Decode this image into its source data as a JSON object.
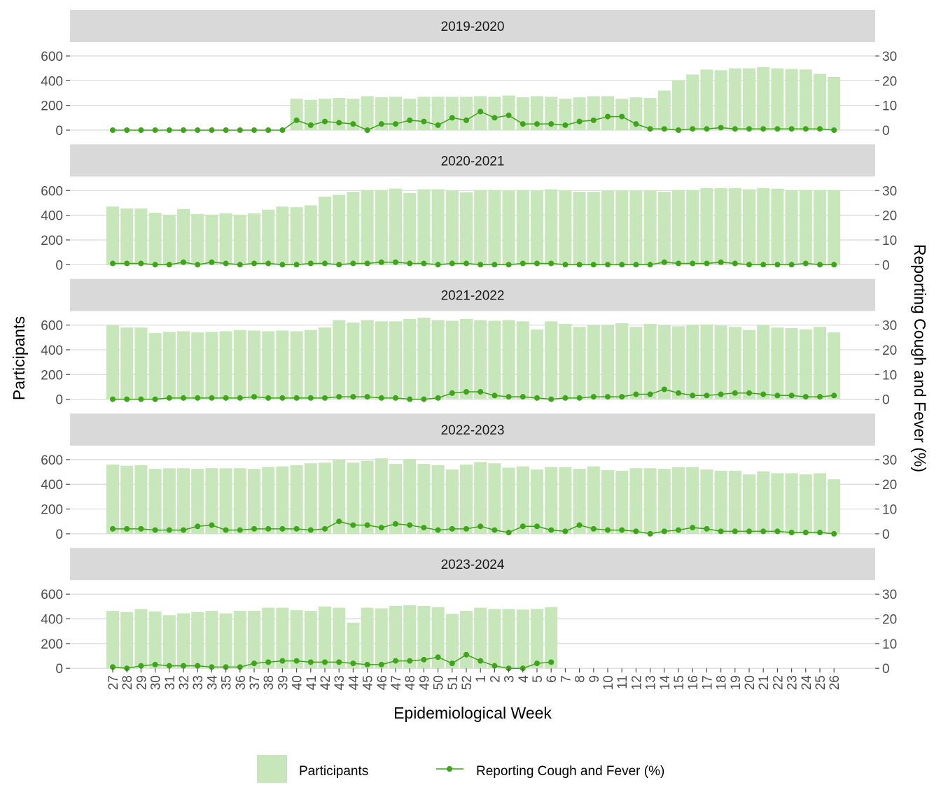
{
  "chart_data": {
    "type": "bar+line",
    "xlabel": "Epidemiological Week",
    "ylabel_left": "Participants",
    "ylabel_right": "Reporting Cough and Fever (%)",
    "ylim_left": [
      0,
      600
    ],
    "ylim_right": [
      0,
      30
    ],
    "yticks_left": [
      "0",
      "200",
      "400",
      "600"
    ],
    "yticks_right": [
      "0",
      "10",
      "20",
      "30"
    ],
    "grid": true,
    "legend_position": "bottom",
    "colors": {
      "bar": "#c7e6b9",
      "line": "#3fa31c",
      "strip": "#d9d9d9",
      "grid": "#d9d9d9"
    },
    "weeks": [
      "27",
      "28",
      "29",
      "30",
      "31",
      "32",
      "33",
      "34",
      "35",
      "36",
      "37",
      "38",
      "39",
      "40",
      "41",
      "42",
      "43",
      "44",
      "45",
      "46",
      "47",
      "48",
      "49",
      "50",
      "51",
      "52",
      "1",
      "2",
      "3",
      "4",
      "5",
      "6",
      "7",
      "8",
      "9",
      "10",
      "11",
      "12",
      "13",
      "14",
      "15",
      "16",
      "17",
      "18",
      "19",
      "20",
      "21",
      "22",
      "23",
      "24",
      "25",
      "26"
    ],
    "legend": {
      "bar_label": "Participants",
      "line_label": "Reporting Cough and Fever (%)"
    },
    "panels": [
      {
        "season": "2019-2020",
        "participants": [
          null,
          null,
          null,
          null,
          null,
          null,
          null,
          null,
          null,
          null,
          null,
          null,
          null,
          255,
          245,
          255,
          260,
          255,
          275,
          265,
          270,
          255,
          270,
          270,
          270,
          270,
          275,
          270,
          280,
          265,
          275,
          270,
          255,
          265,
          275,
          275,
          255,
          265,
          260,
          320,
          405,
          450,
          490,
          485,
          500,
          500,
          510,
          500,
          495,
          490,
          455,
          430
        ],
        "cough_fever_pct": [
          0,
          0,
          0,
          0,
          0,
          0,
          0,
          0,
          0,
          0,
          0,
          0,
          0,
          4,
          2,
          3.5,
          3,
          2.5,
          0,
          2.5,
          2.5,
          4,
          3.5,
          2,
          5,
          4,
          7.5,
          5,
          6,
          2.5,
          2.5,
          2.5,
          2,
          3.5,
          4,
          5.5,
          5.5,
          2.5,
          0.5,
          0.5,
          0,
          0.5,
          0.5,
          1,
          0.5,
          0.5,
          0.5,
          0.5,
          0.5,
          0.5,
          0.5,
          0
        ]
      },
      {
        "season": "2020-2021",
        "participants": [
          470,
          455,
          455,
          420,
          405,
          450,
          410,
          405,
          415,
          405,
          415,
          445,
          470,
          465,
          480,
          550,
          565,
          590,
          605,
          605,
          615,
          580,
          610,
          610,
          600,
          585,
          605,
          605,
          600,
          605,
          600,
          610,
          600,
          590,
          590,
          600,
          600,
          600,
          600,
          590,
          605,
          605,
          620,
          620,
          620,
          610,
          620,
          615,
          605,
          605,
          605,
          605
        ],
        "cough_fever_pct": [
          0.5,
          0.5,
          0.5,
          0,
          0,
          1,
          0,
          1,
          0.5,
          0,
          0.5,
          0.5,
          0,
          0,
          0.5,
          0.5,
          0,
          0.5,
          0.5,
          1,
          1,
          0.5,
          0.5,
          0,
          0.5,
          0.5,
          0,
          0,
          0,
          0.5,
          0.5,
          0.5,
          0,
          0,
          0,
          0,
          0,
          0,
          0,
          1,
          0.5,
          0.5,
          0.5,
          1,
          0.5,
          0,
          0,
          0,
          0,
          0.5,
          0,
          0
        ]
      },
      {
        "season": "2021-2022",
        "participants": [
          600,
          580,
          580,
          535,
          545,
          550,
          540,
          545,
          550,
          560,
          555,
          550,
          555,
          550,
          560,
          580,
          640,
          620,
          640,
          630,
          630,
          650,
          660,
          640,
          635,
          650,
          640,
          635,
          640,
          630,
          565,
          630,
          610,
          585,
          600,
          600,
          615,
          585,
          610,
          600,
          590,
          600,
          605,
          595,
          585,
          560,
          600,
          580,
          575,
          565,
          585,
          540
        ],
        "cough_fever_pct": [
          0,
          0,
          0,
          0,
          0.5,
          0.5,
          0.5,
          0.5,
          0.5,
          0.5,
          1,
          0.5,
          0.5,
          0.5,
          0.5,
          0.5,
          1,
          1,
          1,
          0.5,
          0.5,
          0,
          0,
          0.5,
          2.5,
          3,
          3,
          1.5,
          1,
          1,
          0.5,
          0,
          0.5,
          0.5,
          1,
          1,
          1,
          2,
          2,
          4,
          2.5,
          1.5,
          1.5,
          2,
          2.5,
          2.5,
          2,
          1.5,
          1.5,
          1,
          1,
          1.5
        ]
      },
      {
        "season": "2022-2023",
        "participants": [
          560,
          550,
          555,
          525,
          530,
          530,
          525,
          530,
          530,
          530,
          525,
          540,
          545,
          555,
          570,
          575,
          600,
          575,
          590,
          610,
          565,
          605,
          565,
          555,
          520,
          560,
          580,
          570,
          535,
          545,
          520,
          540,
          540,
          525,
          545,
          515,
          510,
          530,
          530,
          525,
          540,
          540,
          520,
          510,
          510,
          480,
          505,
          490,
          490,
          480,
          490,
          440
        ],
        "cough_fever_pct": [
          2,
          2,
          2,
          1.5,
          1.5,
          1.5,
          3,
          3.5,
          1.5,
          1.5,
          2,
          2,
          2,
          2,
          1.5,
          2,
          5,
          3.5,
          3.5,
          2.5,
          4,
          3.5,
          2.5,
          1.5,
          2,
          2,
          3,
          1.5,
          0.5,
          3,
          3,
          1.5,
          1,
          3.5,
          2,
          1.5,
          1.5,
          1,
          0,
          1,
          1.5,
          2.5,
          2,
          1,
          1,
          1,
          1,
          1,
          0.5,
          0.5,
          0.5,
          0
        ]
      },
      {
        "season": "2023-2024",
        "participants": [
          465,
          455,
          480,
          460,
          430,
          445,
          455,
          465,
          445,
          465,
          465,
          490,
          490,
          470,
          465,
          500,
          490,
          370,
          490,
          485,
          505,
          510,
          505,
          495,
          440,
          465,
          490,
          480,
          480,
          475,
          480,
          495,
          null,
          null,
          null,
          null,
          null,
          null,
          null,
          null,
          null,
          null,
          null,
          null,
          null,
          null,
          null,
          null,
          null,
          null,
          null,
          null
        ],
        "cough_fever_pct": [
          0.5,
          0,
          1,
          1.5,
          1,
          1,
          1,
          0.5,
          0.5,
          0.5,
          2,
          2.5,
          3,
          3,
          2.5,
          2.5,
          2.5,
          2,
          1.5,
          1.5,
          3,
          3,
          3.5,
          4.5,
          2,
          5.5,
          3,
          1,
          0,
          0,
          2,
          2.5,
          null,
          null,
          null,
          null,
          null,
          null,
          null,
          null,
          null,
          null,
          null,
          null,
          null,
          null,
          null,
          null,
          null,
          null,
          null,
          null
        ]
      }
    ]
  }
}
